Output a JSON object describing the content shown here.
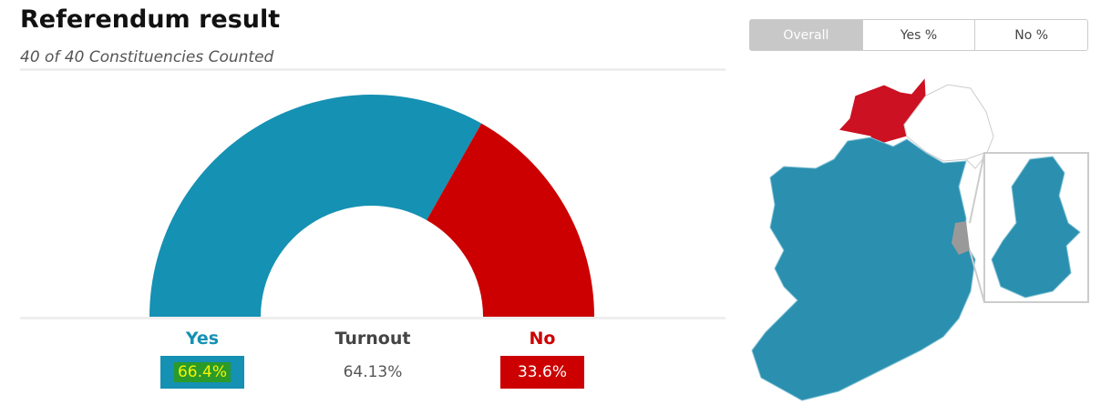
{
  "chart_data": {
    "type": "half-donut",
    "title": "Referendum result",
    "subtitle": "40 of 40 Constituencies Counted",
    "categories": [
      "Yes",
      "No"
    ],
    "values": [
      66.4,
      33.6
    ],
    "value_labels": [
      "66.4%",
      "33.6%"
    ],
    "colors": [
      "#1591b3",
      "#cc0000"
    ]
  },
  "turnout": {
    "label": "Turnout",
    "value": "64.13%"
  },
  "tabs": [
    "Overall",
    "Yes %",
    "No %"
  ]
}
